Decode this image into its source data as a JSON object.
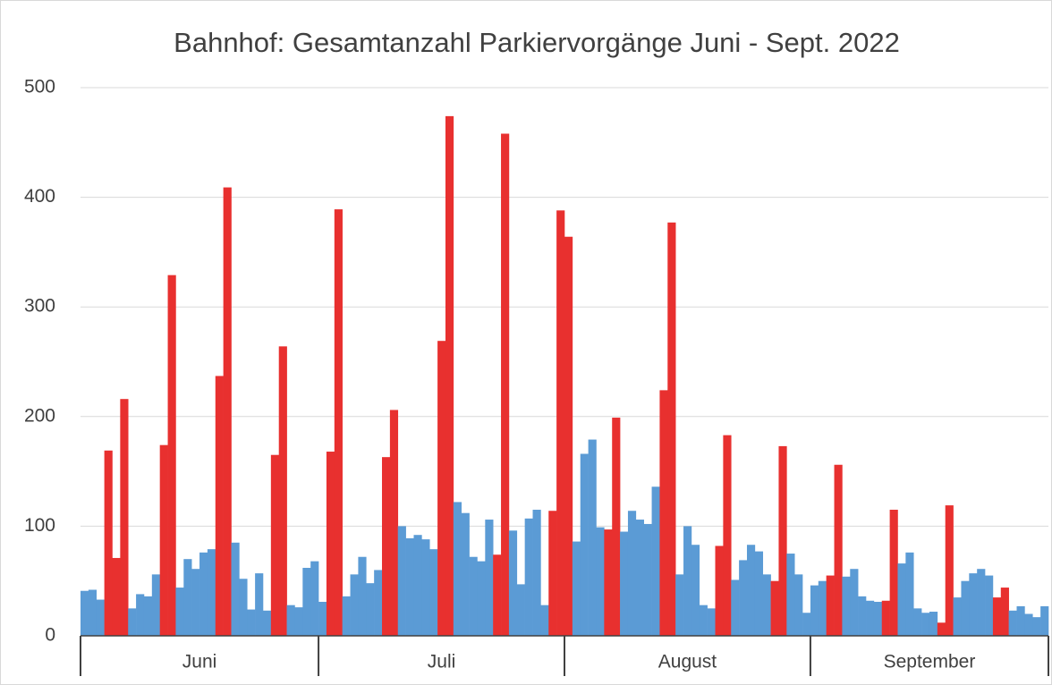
{
  "chart_data": {
    "type": "bar",
    "title": "Bahnhof: Gesamtanzahl Parkiervorgänge Juni - Sept. 2022",
    "ylim": [
      0,
      500
    ],
    "yticks": [
      0,
      100,
      200,
      300,
      400,
      500
    ],
    "grid": true,
    "groups": [
      {
        "label": "Juni",
        "values": [
          41,
          42,
          33,
          169,
          71,
          216,
          25,
          38,
          36,
          56,
          174,
          329,
          44,
          70,
          61,
          76,
          79,
          237,
          409,
          85,
          52,
          24,
          57,
          23,
          165,
          264,
          28,
          26,
          62,
          68
        ],
        "colors": [
          "#5b9bd5",
          "#5b9bd5",
          "#5b9bd5",
          "#e8302f",
          "#e8302f",
          "#e8302f",
          "#5b9bd5",
          "#5b9bd5",
          "#5b9bd5",
          "#5b9bd5",
          "#e8302f",
          "#e8302f",
          "#5b9bd5",
          "#5b9bd5",
          "#5b9bd5",
          "#5b9bd5",
          "#5b9bd5",
          "#e8302f",
          "#e8302f",
          "#5b9bd5",
          "#5b9bd5",
          "#5b9bd5",
          "#5b9bd5",
          "#5b9bd5",
          "#e8302f",
          "#e8302f",
          "#5b9bd5",
          "#5b9bd5",
          "#5b9bd5",
          "#5b9bd5"
        ]
      },
      {
        "label": "Juli",
        "values": [
          31,
          168,
          389,
          36,
          56,
          72,
          48,
          60,
          163,
          206,
          100,
          89,
          92,
          88,
          79,
          269,
          474,
          122,
          112,
          72,
          68,
          106,
          74,
          458,
          96,
          47,
          107,
          115,
          28,
          114,
          388
        ],
        "colors": [
          "#5b9bd5",
          "#e8302f",
          "#e8302f",
          "#5b9bd5",
          "#5b9bd5",
          "#5b9bd5",
          "#5b9bd5",
          "#5b9bd5",
          "#e8302f",
          "#e8302f",
          "#5b9bd5",
          "#5b9bd5",
          "#5b9bd5",
          "#5b9bd5",
          "#5b9bd5",
          "#e8302f",
          "#e8302f",
          "#5b9bd5",
          "#5b9bd5",
          "#5b9bd5",
          "#5b9bd5",
          "#5b9bd5",
          "#e8302f",
          "#e8302f",
          "#5b9bd5",
          "#5b9bd5",
          "#5b9bd5",
          "#5b9bd5",
          "#5b9bd5",
          "#e8302f",
          "#e8302f"
        ]
      },
      {
        "label": "August",
        "values": [
          364,
          86,
          166,
          179,
          99,
          97,
          199,
          95,
          114,
          106,
          102,
          136,
          224,
          377,
          56,
          100,
          83,
          28,
          25,
          82,
          183,
          51,
          69,
          83,
          77,
          56,
          50,
          173,
          75,
          56,
          21
        ],
        "colors": [
          "#e8302f",
          "#5b9bd5",
          "#5b9bd5",
          "#5b9bd5",
          "#5b9bd5",
          "#e8302f",
          "#e8302f",
          "#5b9bd5",
          "#5b9bd5",
          "#5b9bd5",
          "#5b9bd5",
          "#5b9bd5",
          "#e8302f",
          "#e8302f",
          "#5b9bd5",
          "#5b9bd5",
          "#5b9bd5",
          "#5b9bd5",
          "#5b9bd5",
          "#e8302f",
          "#e8302f",
          "#5b9bd5",
          "#5b9bd5",
          "#5b9bd5",
          "#5b9bd5",
          "#5b9bd5",
          "#e8302f",
          "#e8302f",
          "#5b9bd5",
          "#5b9bd5",
          "#5b9bd5"
        ]
      },
      {
        "label": "September",
        "values": [
          46,
          50,
          55,
          156,
          54,
          61,
          36,
          32,
          31,
          32,
          115,
          66,
          76,
          25,
          21,
          22,
          12,
          119,
          35,
          50,
          57,
          61,
          55,
          35,
          44,
          23,
          27,
          20,
          17,
          27
        ],
        "colors": [
          "#5b9bd5",
          "#5b9bd5",
          "#e8302f",
          "#e8302f",
          "#5b9bd5",
          "#5b9bd5",
          "#5b9bd5",
          "#5b9bd5",
          "#5b9bd5",
          "#e8302f",
          "#e8302f",
          "#5b9bd5",
          "#5b9bd5",
          "#5b9bd5",
          "#5b9bd5",
          "#5b9bd5",
          "#e8302f",
          "#e8302f",
          "#5b9bd5",
          "#5b9bd5",
          "#5b9bd5",
          "#5b9bd5",
          "#5b9bd5",
          "#e8302f",
          "#e8302f",
          "#5b9bd5",
          "#5b9bd5",
          "#5b9bd5",
          "#5b9bd5",
          "#5b9bd5"
        ]
      }
    ]
  }
}
